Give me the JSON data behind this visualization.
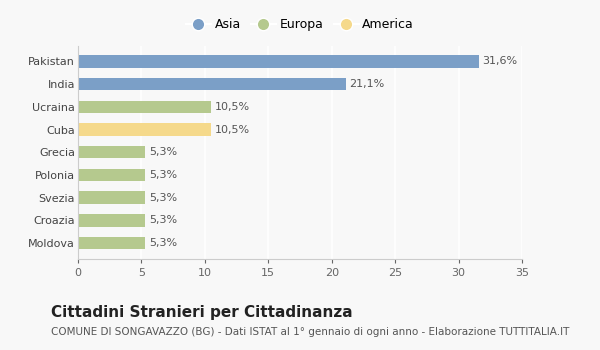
{
  "categories": [
    "Moldova",
    "Croazia",
    "Svezia",
    "Polonia",
    "Grecia",
    "Cuba",
    "Ucraina",
    "India",
    "Pakistan"
  ],
  "values": [
    5.3,
    5.3,
    5.3,
    5.3,
    5.3,
    10.5,
    10.5,
    21.1,
    31.6
  ],
  "labels": [
    "5,3%",
    "5,3%",
    "5,3%",
    "5,3%",
    "5,3%",
    "10,5%",
    "10,5%",
    "21,1%",
    "31,6%"
  ],
  "colors": [
    "#b5c98e",
    "#b5c98e",
    "#b5c98e",
    "#b5c98e",
    "#b5c98e",
    "#f5d98b",
    "#b5c98e",
    "#7b9fc7",
    "#7b9fc7"
  ],
  "legend_labels": [
    "Asia",
    "Europa",
    "America"
  ],
  "legend_colors": [
    "#7b9fc7",
    "#b5c98e",
    "#f5d98b"
  ],
  "xlim": [
    0,
    35
  ],
  "xticks": [
    0,
    5,
    10,
    15,
    20,
    25,
    30,
    35
  ],
  "title": "Cittadini Stranieri per Cittadinanza",
  "subtitle": "COMUNE DI SONGAVAZZO (BG) - Dati ISTAT al 1° gennaio di ogni anno - Elaborazione TUTTITALIA.IT",
  "bg_color": "#f8f8f8",
  "grid_color": "#ffffff",
  "bar_height": 0.55,
  "label_fontsize": 8,
  "title_fontsize": 11,
  "subtitle_fontsize": 7.5,
  "tick_fontsize": 8,
  "ylabel_fontsize": 8
}
